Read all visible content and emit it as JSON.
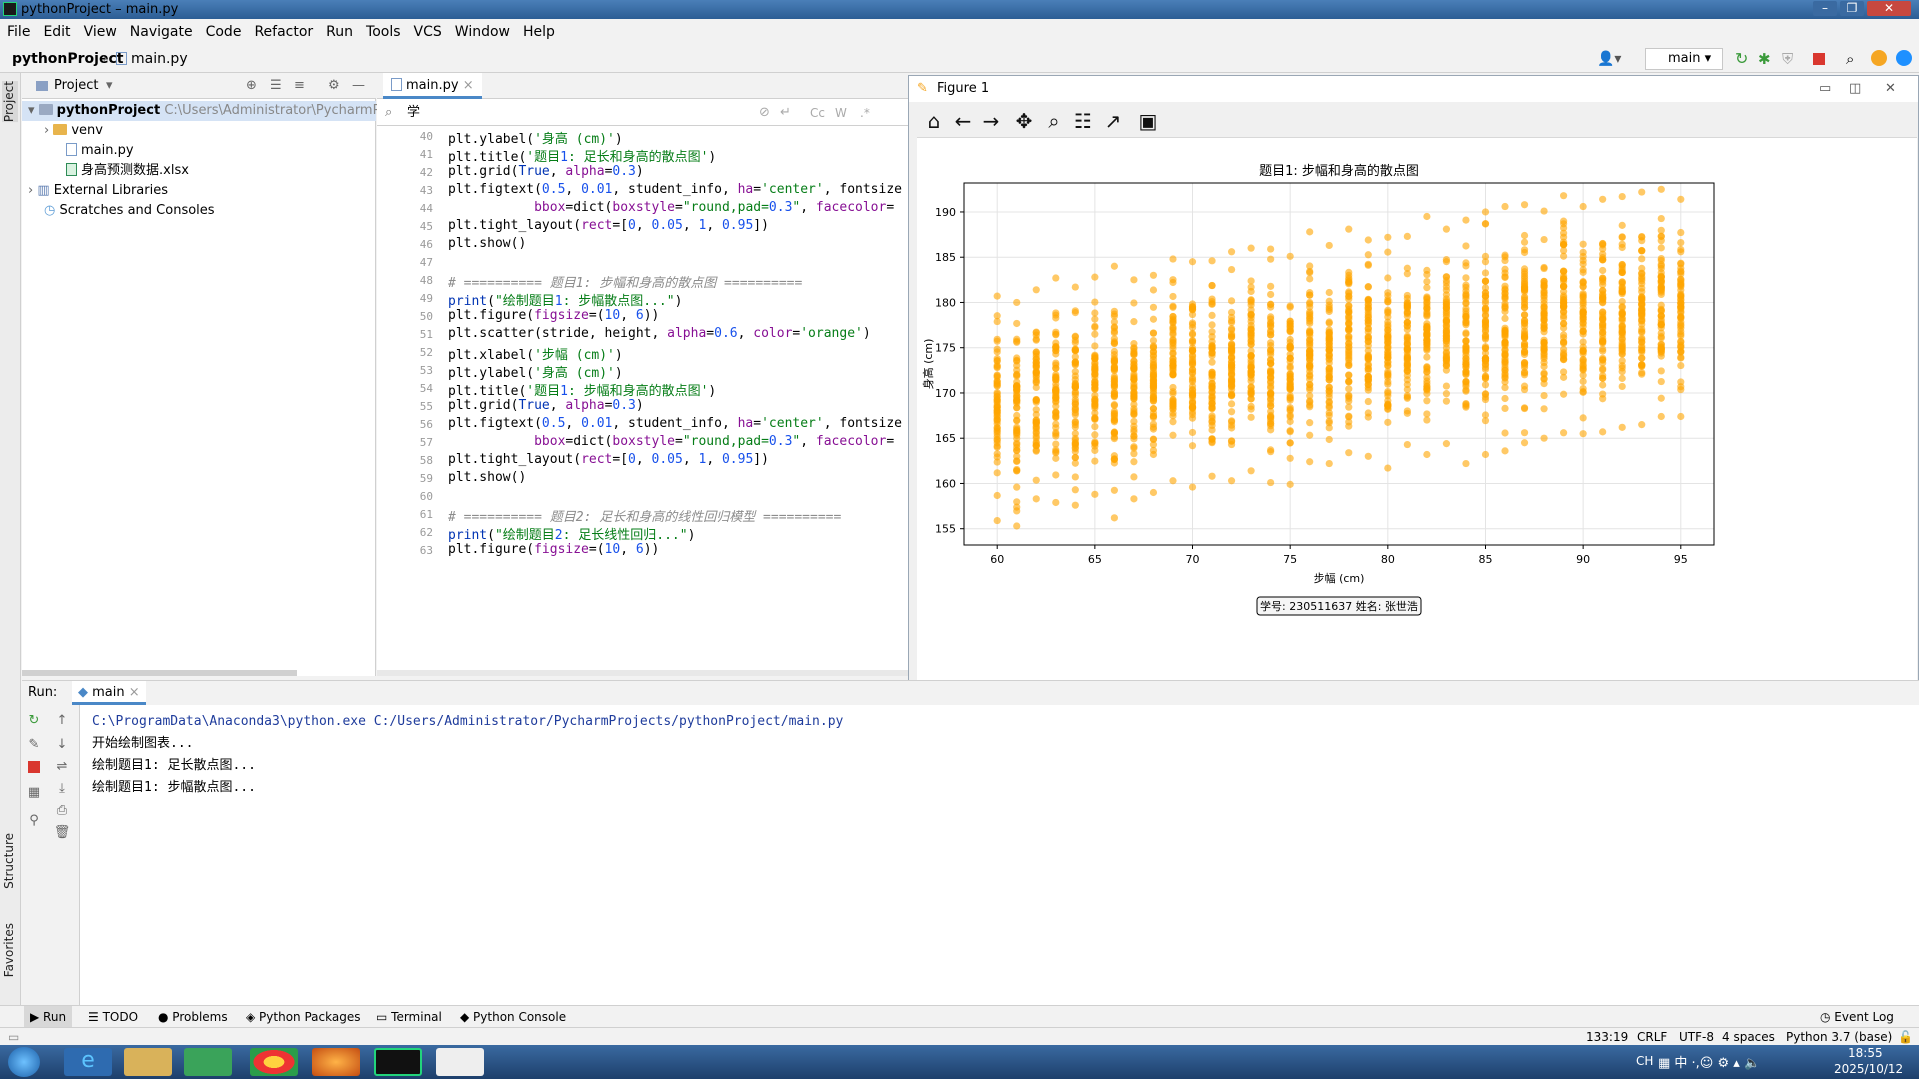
{
  "titlebar": {
    "title": "pythonProject – main.py",
    "min": "–",
    "max": "❐",
    "close": "✕"
  },
  "menu": [
    "File",
    "Edit",
    "View",
    "Navigate",
    "Code",
    "Refactor",
    "Run",
    "Tools",
    "VCS",
    "Window",
    "Help"
  ],
  "nav": {
    "project": "pythonProject",
    "file": "main.py",
    "branch": "main"
  },
  "sidebar_tabs": {
    "project": "Project",
    "structure": "Structure",
    "favorites": "Favorites"
  },
  "project": {
    "header": "Project",
    "items": [
      {
        "label": "pythonProject",
        "path": "C:\\Users\\Administrator\\PycharmProje"
      },
      {
        "label": "venv"
      },
      {
        "label": "main.py"
      },
      {
        "label": "身高预测数据.xlsx"
      },
      {
        "label": "External Libraries"
      },
      {
        "label": "Scratches and Consoles"
      }
    ]
  },
  "editor": {
    "tab": "main.py",
    "search": "学",
    "search_opts": [
      "Cc",
      "W",
      ".*"
    ],
    "lines": [
      {
        "n": "40",
        "t": "plt.ylabel('身高 (cm)')"
      },
      {
        "n": "41",
        "t": "plt.title('题目1: 足长和身高的散点图')"
      },
      {
        "n": "42",
        "t": "plt.grid(True, alpha=0.3)"
      },
      {
        "n": "43",
        "t": "plt.figtext(0.5, 0.01, student_info, ha='center', fontsize"
      },
      {
        "n": "44",
        "t": "           bbox=dict(boxstyle=\"round,pad=0.3\", facecolor="
      },
      {
        "n": "45",
        "t": "plt.tight_layout(rect=[0, 0.05, 1, 0.95])"
      },
      {
        "n": "46",
        "t": "plt.show()"
      },
      {
        "n": "47",
        "t": ""
      },
      {
        "n": "48",
        "t": "# ========== 题目1: 步幅和身高的散点图 =========="
      },
      {
        "n": "49",
        "t": "print(\"绘制题目1: 步幅散点图...\")"
      },
      {
        "n": "50",
        "t": "plt.figure(figsize=(10, 6))"
      },
      {
        "n": "51",
        "t": "plt.scatter(stride, height, alpha=0.6, color='orange')"
      },
      {
        "n": "52",
        "t": "plt.xlabel('步幅 (cm)')"
      },
      {
        "n": "53",
        "t": "plt.ylabel('身高 (cm)')"
      },
      {
        "n": "54",
        "t": "plt.title('题目1: 步幅和身高的散点图')"
      },
      {
        "n": "55",
        "t": "plt.grid(True, alpha=0.3)"
      },
      {
        "n": "56",
        "t": "plt.figtext(0.5, 0.01, student_info, ha='center', fontsize"
      },
      {
        "n": "57",
        "t": "           bbox=dict(boxstyle=\"round,pad=0.3\", facecolor="
      },
      {
        "n": "58",
        "t": "plt.tight_layout(rect=[0, 0.05, 1, 0.95])"
      },
      {
        "n": "59",
        "t": "plt.show()"
      },
      {
        "n": "60",
        "t": ""
      },
      {
        "n": "61",
        "t": "# ========== 题目2: 足长和身高的线性回归模型 =========="
      },
      {
        "n": "62",
        "t": "print(\"绘制题目2: 足长线性回归...\")"
      },
      {
        "n": "63",
        "t": "plt.figure(figsize=(10, 6))"
      }
    ]
  },
  "run": {
    "label": "Run:",
    "tab": "main",
    "console": [
      "C:\\ProgramData\\Anaconda3\\python.exe C:/Users/Administrator/PycharmProjects/pythonProject/main.py",
      "开始绘制图表...",
      "绘制题目1: 足长散点图...",
      "绘制题目1: 步幅散点图..."
    ]
  },
  "bottom_tabs": [
    "Run",
    "TODO",
    "Problems",
    "Python Packages",
    "Terminal",
    "Python Console",
    "Event Log"
  ],
  "status": {
    "pos": "133:19",
    "eol": "CRLF",
    "enc": "UTF-8",
    "indent": "4 spaces",
    "interp": "Python 3.7 (base)"
  },
  "taskbar": {
    "time": "18:55",
    "date": "2025/10/12",
    "lang": "CH"
  },
  "figure": {
    "window_title": "Figure 1",
    "footer": "学号: 230511637 姓名: 张世浩"
  },
  "colors": {
    "scatter": "#ffa500",
    "accent": "#4a88c7"
  },
  "chart_data": {
    "type": "scatter",
    "title": "题目1: 步幅和身高的散点图",
    "xlabel": "步幅 (cm)",
    "ylabel": "身高 (cm)",
    "xlim": [
      58.3,
      96.7
    ],
    "ylim": [
      153.2,
      193.2
    ],
    "xticks": [
      60,
      65,
      70,
      75,
      80,
      85,
      90,
      95
    ],
    "yticks": [
      155,
      160,
      165,
      170,
      175,
      180,
      185,
      190
    ],
    "grid": true,
    "series": [
      {
        "color": "#ffa500",
        "alpha": 0.6,
        "columns": [
          {
            "x": 60,
            "ymin": 155.9,
            "ymax": 180.7
          },
          {
            "x": 61,
            "ymin": 155.3,
            "ymax": 180.0
          },
          {
            "x": 62,
            "ymin": 158.3,
            "ymax": 181.4
          },
          {
            "x": 63,
            "ymin": 157.9,
            "ymax": 182.7
          },
          {
            "x": 64,
            "ymin": 157.6,
            "ymax": 181.7
          },
          {
            "x": 65,
            "ymin": 158.8,
            "ymax": 182.8
          },
          {
            "x": 66,
            "ymin": 156.2,
            "ymax": 184.0
          },
          {
            "x": 67,
            "ymin": 158.3,
            "ymax": 182.5
          },
          {
            "x": 68,
            "ymin": 159.0,
            "ymax": 183.0
          },
          {
            "x": 69,
            "ymin": 160.3,
            "ymax": 184.8
          },
          {
            "x": 70,
            "ymin": 159.6,
            "ymax": 184.5
          },
          {
            "x": 71,
            "ymin": 160.8,
            "ymax": 184.6
          },
          {
            "x": 72,
            "ymin": 160.3,
            "ymax": 185.6
          },
          {
            "x": 73,
            "ymin": 161.4,
            "ymax": 186.0
          },
          {
            "x": 74,
            "ymin": 160.1,
            "ymax": 185.9
          },
          {
            "x": 75,
            "ymin": 159.9,
            "ymax": 185.1
          },
          {
            "x": 76,
            "ymin": 162.4,
            "ymax": 187.8
          },
          {
            "x": 77,
            "ymin": 162.2,
            "ymax": 186.3
          },
          {
            "x": 78,
            "ymin": 163.4,
            "ymax": 188.1
          },
          {
            "x": 79,
            "ymin": 163.0,
            "ymax": 186.9
          },
          {
            "x": 80,
            "ymin": 161.7,
            "ymax": 187.2
          },
          {
            "x": 81,
            "ymin": 164.3,
            "ymax": 187.3
          },
          {
            "x": 82,
            "ymin": 163.2,
            "ymax": 189.5
          },
          {
            "x": 83,
            "ymin": 164.4,
            "ymax": 188.1
          },
          {
            "x": 84,
            "ymin": 162.2,
            "ymax": 189.1
          },
          {
            "x": 85,
            "ymin": 163.2,
            "ymax": 190.0
          },
          {
            "x": 86,
            "ymin": 163.6,
            "ymax": 190.6
          },
          {
            "x": 87,
            "ymin": 164.5,
            "ymax": 190.8
          },
          {
            "x": 88,
            "ymin": 165.0,
            "ymax": 190.1
          },
          {
            "x": 89,
            "ymin": 165.6,
            "ymax": 191.8
          },
          {
            "x": 90,
            "ymin": 165.5,
            "ymax": 190.6
          },
          {
            "x": 91,
            "ymin": 165.7,
            "ymax": 191.4
          },
          {
            "x": 92,
            "ymin": 166.2,
            "ymax": 191.7
          },
          {
            "x": 93,
            "ymin": 166.5,
            "ymax": 192.2
          },
          {
            "x": 94,
            "ymin": 167.4,
            "ymax": 192.5
          },
          {
            "x": 95,
            "ymin": 167.4,
            "ymax": 191.4
          }
        ]
      }
    ]
  }
}
